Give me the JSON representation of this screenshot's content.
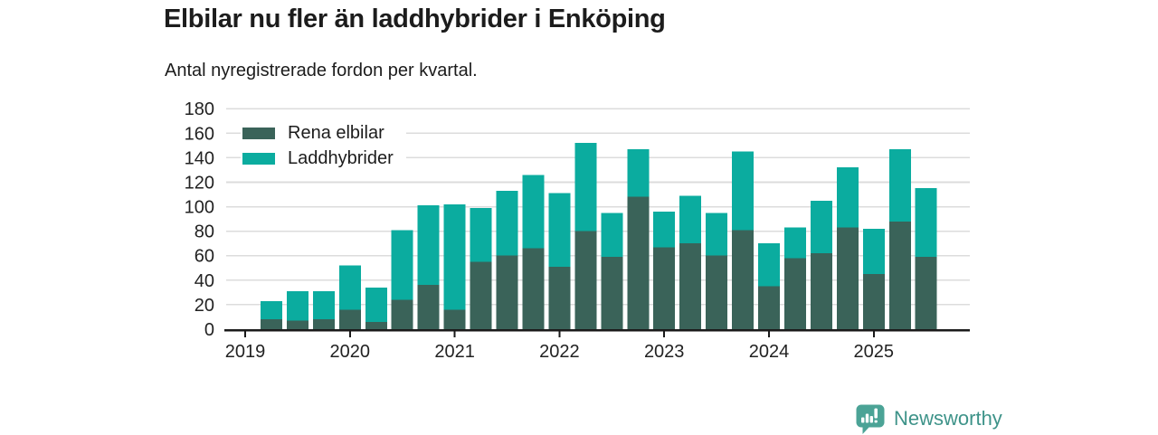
{
  "chart_data": {
    "type": "bar",
    "stacked": true,
    "title": "Elbilar nu fler än laddhybrider i Enköping",
    "subtitle": "Antal nyregistrerade fordon per kvartal.",
    "x": [
      "2019-Q2",
      "2019-Q3",
      "2019-Q4",
      "2020-Q1",
      "2020-Q2",
      "2020-Q3",
      "2020-Q4",
      "2021-Q1",
      "2021-Q2",
      "2021-Q3",
      "2021-Q4",
      "2022-Q1",
      "2022-Q2",
      "2022-Q3",
      "2022-Q4",
      "2023-Q1",
      "2023-Q2",
      "2023-Q3",
      "2023-Q4",
      "2024-Q1",
      "2024-Q2",
      "2024-Q3",
      "2024-Q4",
      "2025-Q1",
      "2025-Q2",
      "2025-Q3"
    ],
    "x_tick_labels": [
      "2019",
      "2020",
      "2021",
      "2022",
      "2023",
      "2024",
      "2025"
    ],
    "series": [
      {
        "name": "Rena elbilar",
        "color": "#3a6359",
        "values": [
          8,
          7,
          8,
          16,
          6,
          24,
          36,
          16,
          55,
          60,
          66,
          51,
          80,
          59,
          108,
          67,
          70,
          60,
          81,
          35,
          58,
          62,
          83,
          45,
          88,
          59
        ]
      },
      {
        "name": "Laddhybrider",
        "color": "#0bac9f",
        "values": [
          15,
          24,
          23,
          36,
          28,
          57,
          65,
          86,
          44,
          53,
          60,
          60,
          72,
          36,
          39,
          29,
          39,
          35,
          64,
          35,
          25,
          43,
          49,
          37,
          59,
          56
        ]
      }
    ],
    "ylim": [
      0,
      180
    ],
    "y_tick_step": 20,
    "grid": "horizontal",
    "legend_position": "top-left-inside",
    "grid_color": "#dcdcdc",
    "axis_color": "#1a1a1a",
    "tick_label_color": "#222222"
  },
  "footer": {
    "brand": "Newsworthy",
    "brand_color": "#3e9389",
    "icon": "newsworthy-logo-icon",
    "icon_color": "#4ba396"
  }
}
